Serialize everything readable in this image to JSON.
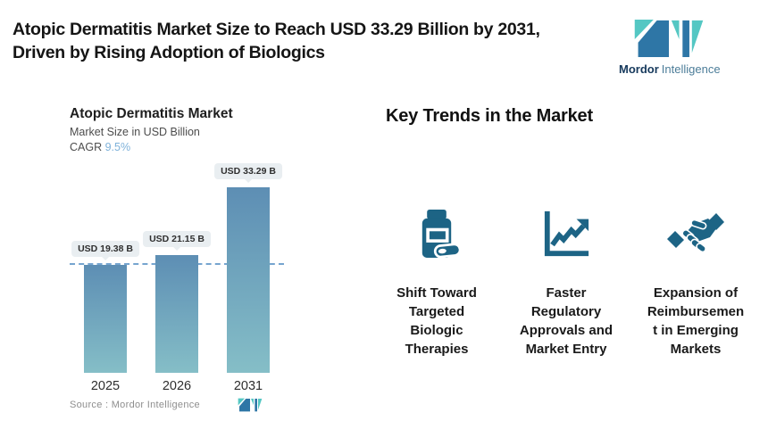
{
  "header": {
    "title": "Atopic Dermatitis Market Size to Reach USD 33.29 Billion by 2031,\nDriven by Rising Adoption of Biologics"
  },
  "brand": {
    "name_bold": "Mordor",
    "name_light": "Intelligence",
    "colors": {
      "dark_blue": "#2e76a6",
      "teal": "#54c7c3"
    }
  },
  "chart_data": {
    "type": "bar",
    "title": "Atopic Dermatitis Market",
    "subtitle": "Market Size in USD Billion",
    "cagr_label": "CAGR",
    "cagr_value": "9.5%",
    "unit": "USD Billion",
    "categories": [
      "2025",
      "2026",
      "2031"
    ],
    "values": [
      19.38,
      21.15,
      33.29
    ],
    "bar_labels": [
      "USD 19.38 B",
      "USD 21.15 B",
      "USD 33.29 B"
    ],
    "ylim": [
      0,
      37
    ],
    "reference_line_value": 19.38,
    "grid": false,
    "legend": false,
    "bar_color_top": "#5d8eb4",
    "bar_color_bottom": "#85bec7",
    "reference_line_color": "#76a5cf",
    "source": "Source :  Mordor Intelligence"
  },
  "trends": {
    "heading": "Key Trends in the Market",
    "icon_color": "#1d6485",
    "items": [
      {
        "icon": "pill-bottle-icon",
        "label": "Shift Toward\nTargeted\nBiologic\nTherapies"
      },
      {
        "icon": "growth-chart-icon",
        "label": "Faster\nRegulatory\nApprovals and\nMarket Entry"
      },
      {
        "icon": "handshake-icon",
        "label": "Expansion of\nReimbursemen\nt in Emerging\nMarkets"
      }
    ]
  }
}
